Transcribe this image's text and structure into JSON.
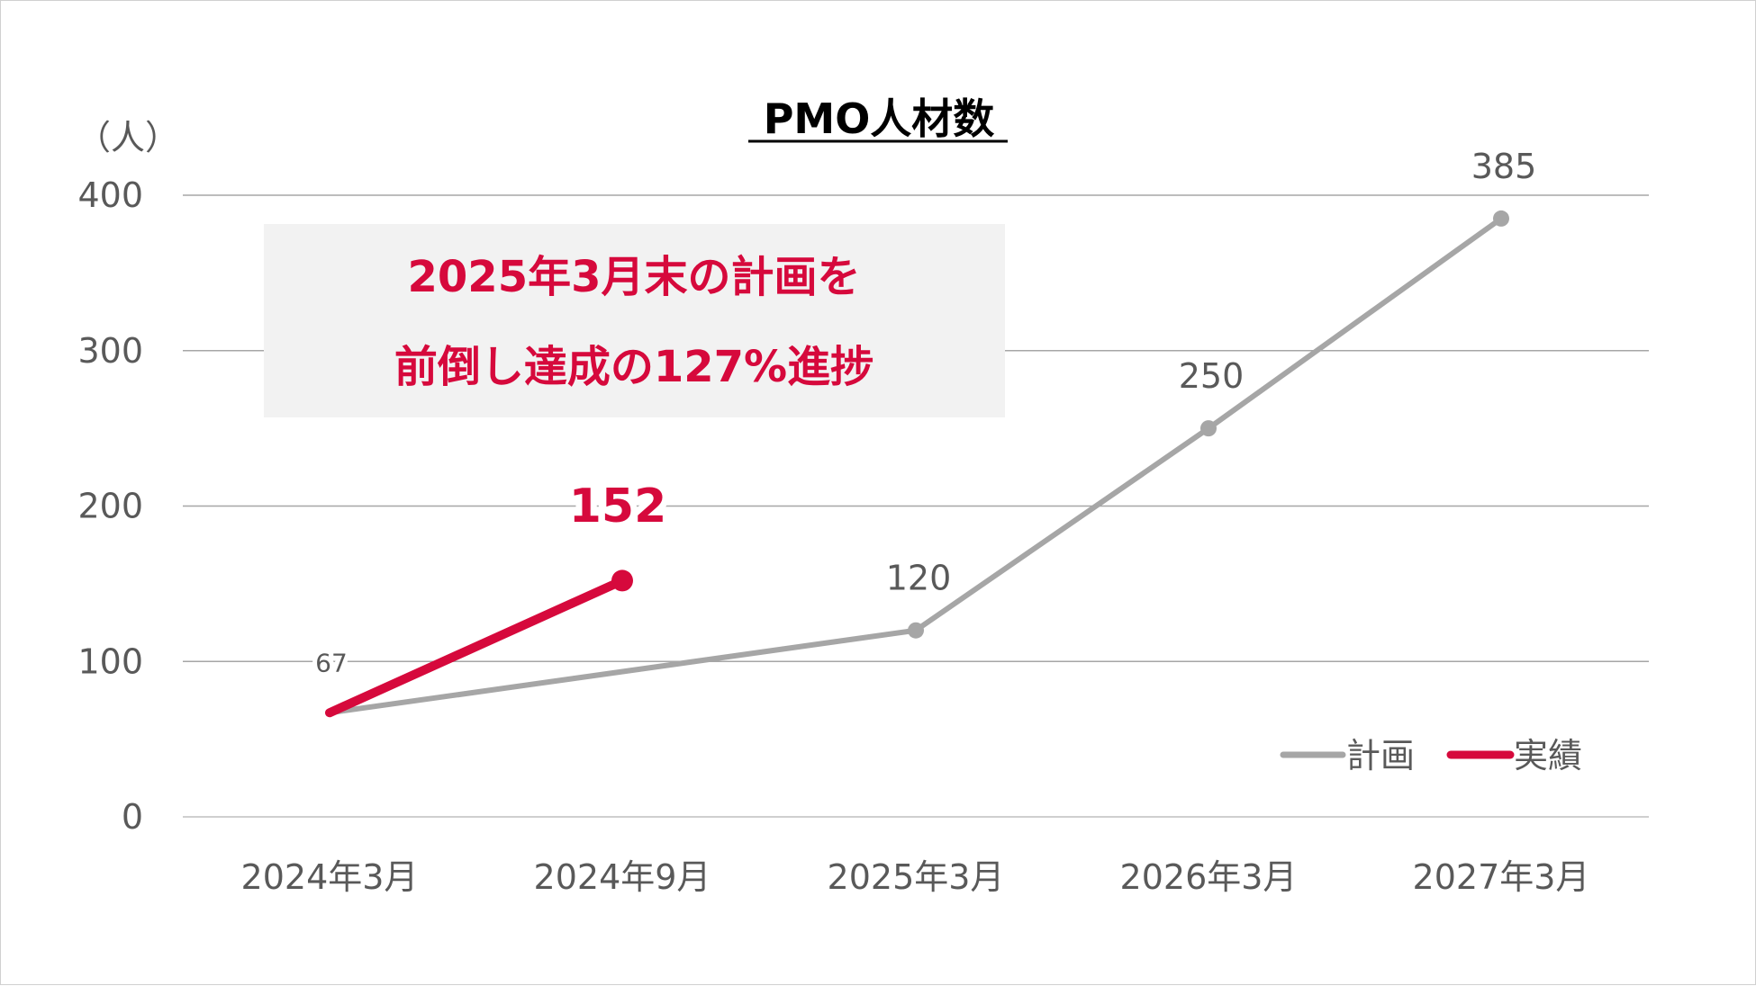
{
  "chart_data": {
    "type": "line",
    "title": "PMO人材数",
    "ylabel": "（人）",
    "ylim": [
      0,
      400
    ],
    "yticks": [
      "0",
      "100",
      "200",
      "300",
      "400"
    ],
    "categories": [
      "2024年3月",
      "2024年9月",
      "2025年3月",
      "2026年3月",
      "2027年3月"
    ],
    "series": [
      {
        "name": "計画",
        "color": "#a6a6a6",
        "x": [
          "2024年3月",
          "2025年3月",
          "2026年3月",
          "2027年3月"
        ],
        "values": [
          67,
          120,
          250,
          385
        ],
        "labels": [
          "67",
          "120",
          "250",
          "385"
        ]
      },
      {
        "name": "実績",
        "color": "#d6093c",
        "x": [
          "2024年3月",
          "2024年9月"
        ],
        "values": [
          67,
          152
        ],
        "labels": [
          "",
          "152"
        ]
      }
    ],
    "grid": true,
    "legend_position": "bottom-right",
    "annotation": {
      "line1": "2025年3月末の計画を",
      "line2": "前倒し達成の127%進捗"
    }
  }
}
